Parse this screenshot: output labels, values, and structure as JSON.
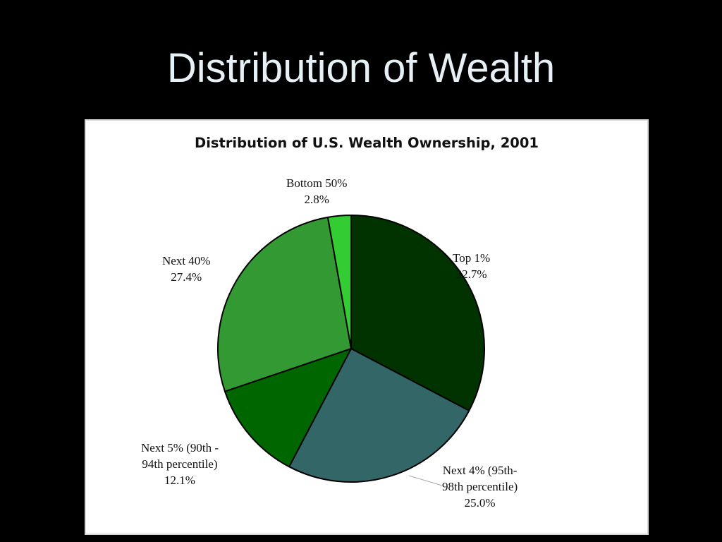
{
  "slide": {
    "title": "Distribution of Wealth"
  },
  "chart_data": {
    "type": "pie",
    "title": "Distribution of U.S. Wealth Ownership, 2001",
    "slices": [
      {
        "label_line1": "Top 1%",
        "label_line2": "",
        "value": 32.7,
        "value_text": "32.7%",
        "color": "#003300"
      },
      {
        "label_line1": "Next 4% (95th-",
        "label_line2": "98th percentile)",
        "value": 25.0,
        "value_text": "25.0%",
        "color": "#336666"
      },
      {
        "label_line1": "Next 5% (90th -",
        "label_line2": "94th percentile)",
        "value": 12.1,
        "value_text": "12.1%",
        "color": "#006600"
      },
      {
        "label_line1": "Next 40%",
        "label_line2": "",
        "value": 27.4,
        "value_text": "27.4%",
        "color": "#339933"
      },
      {
        "label_line1": "Bottom 50%",
        "label_line2": "",
        "value": 2.8,
        "value_text": "2.8%",
        "color": "#33cc33"
      }
    ],
    "start": "12 o'clock",
    "direction": "clockwise"
  }
}
